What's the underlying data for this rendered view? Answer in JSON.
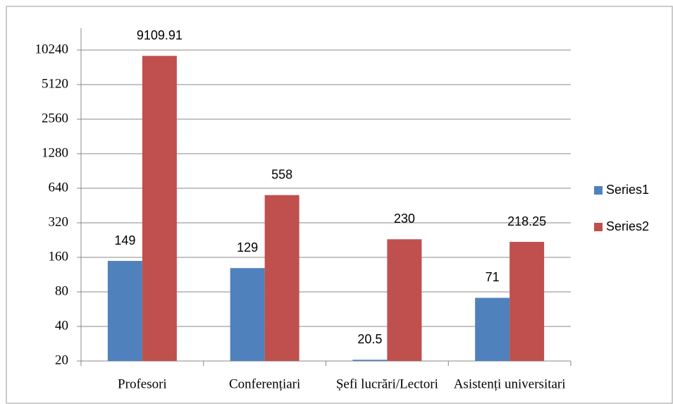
{
  "chart_data": {
    "type": "bar",
    "categories": [
      "Profesori",
      "Conferențiari",
      "Șefi lucrări/Lectori",
      "Asistenți universitari"
    ],
    "series": [
      {
        "name": "Series1",
        "color": "#4f81bd",
        "values": [
          149,
          129,
          20.5,
          71
        ]
      },
      {
        "name": "Series2",
        "color": "#c0504d",
        "values": [
          9109.91,
          558,
          230,
          218.25
        ]
      }
    ],
    "ylim": [
      20,
      20480
    ],
    "yticks": [
      20,
      40,
      80,
      160,
      320,
      640,
      1280,
      2560,
      5120,
      10240
    ],
    "log_scale": true,
    "log_base": 2,
    "grid": true,
    "legend": "right"
  }
}
